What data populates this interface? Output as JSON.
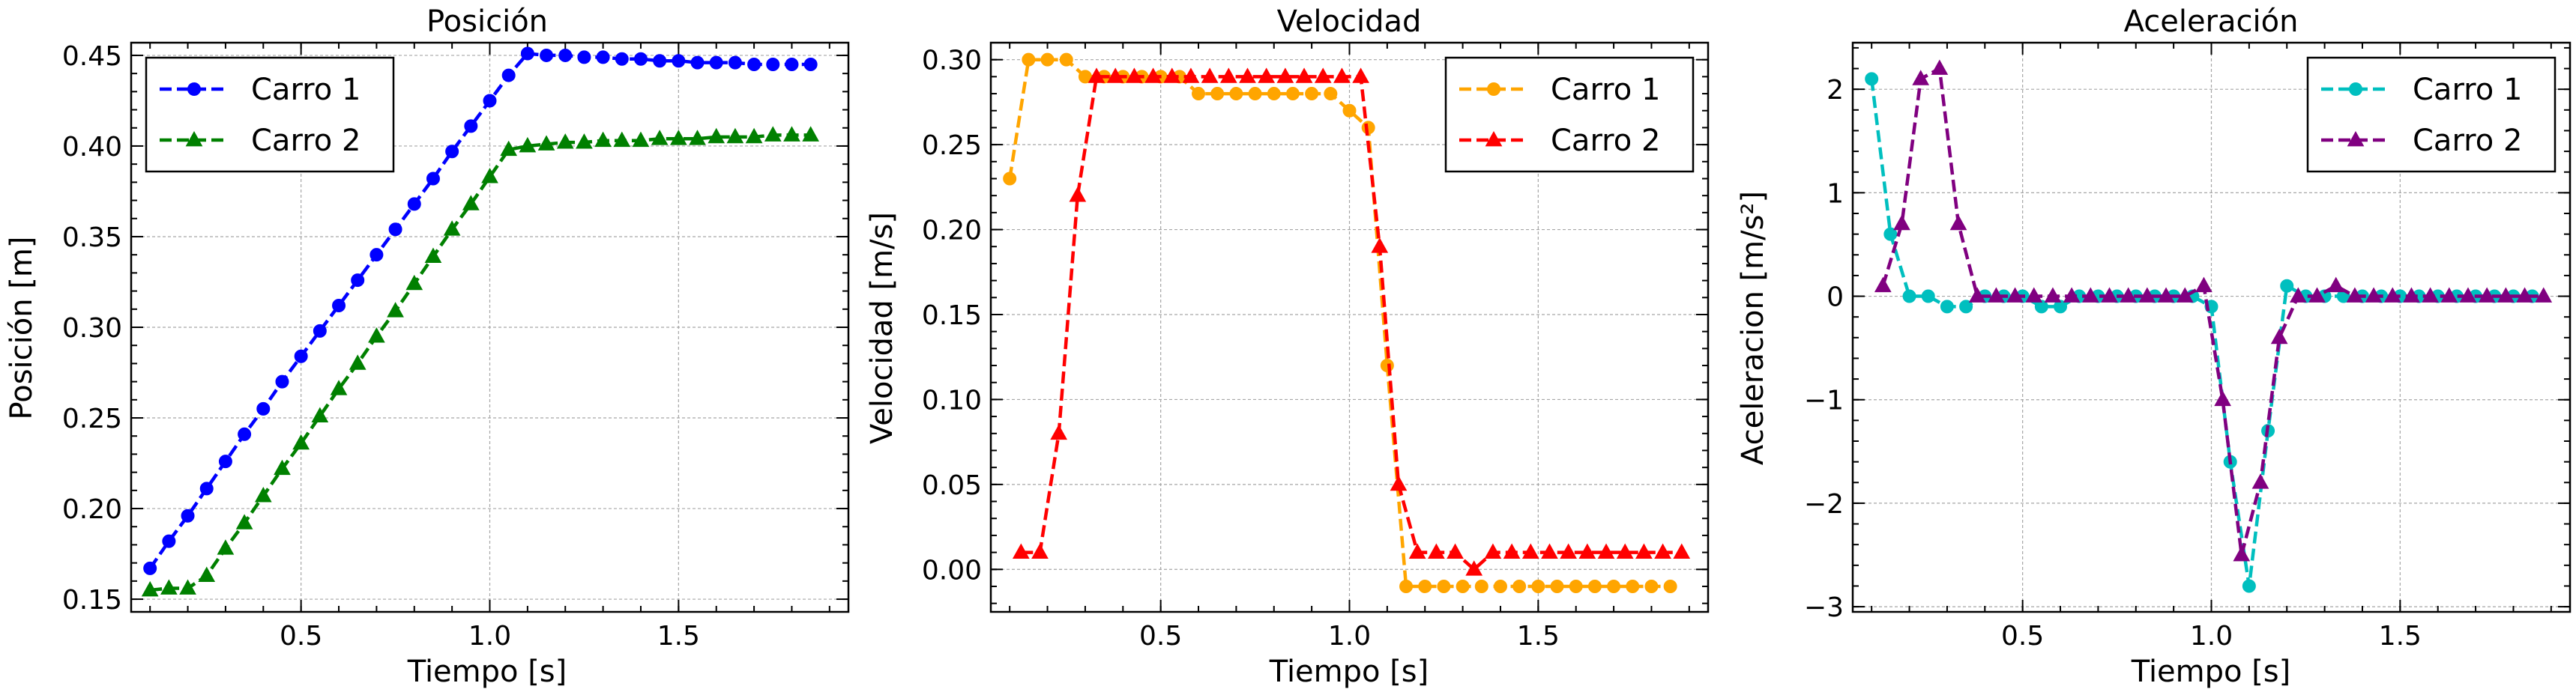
{
  "chart_data": [
    {
      "type": "line",
      "title": "Posición",
      "xlabel": "Tiempo [s]",
      "ylabel": "Posición [m]",
      "xlim": [
        0.05,
        1.95
      ],
      "ylim": [
        0.143,
        0.457
      ],
      "xticks": [
        0.5,
        1.0,
        1.5
      ],
      "xtick_labels": [
        "0.5",
        "1.0",
        "1.5"
      ],
      "yticks": [
        0.15,
        0.2,
        0.25,
        0.3,
        0.35,
        0.4,
        0.45
      ],
      "ytick_labels": [
        "0.15",
        "0.20",
        "0.25",
        "0.30",
        "0.35",
        "0.40",
        "0.45"
      ],
      "grid": true,
      "legend_position": "top-left",
      "series": [
        {
          "name": "Carro 1",
          "color": "#0000ff",
          "marker": "circle",
          "x": [
            0.1,
            0.15,
            0.2,
            0.25,
            0.3,
            0.35,
            0.4,
            0.45,
            0.5,
            0.55,
            0.6,
            0.65,
            0.7,
            0.75,
            0.8,
            0.85,
            0.9,
            0.95,
            1.0,
            1.05,
            1.1,
            1.15,
            1.2,
            1.25,
            1.3,
            1.35,
            1.4,
            1.45,
            1.5,
            1.55,
            1.6,
            1.65,
            1.7,
            1.75,
            1.8,
            1.85
          ],
          "y": [
            0.167,
            0.182,
            0.196,
            0.211,
            0.226,
            0.241,
            0.255,
            0.27,
            0.284,
            0.298,
            0.312,
            0.326,
            0.34,
            0.354,
            0.368,
            0.382,
            0.397,
            0.411,
            0.425,
            0.439,
            0.451,
            0.45,
            0.45,
            0.449,
            0.449,
            0.448,
            0.448,
            0.447,
            0.447,
            0.446,
            0.446,
            0.446,
            0.445,
            0.445,
            0.445,
            0.445
          ]
        },
        {
          "name": "Carro 2",
          "color": "#008000",
          "marker": "triangle",
          "x": [
            0.1,
            0.15,
            0.2,
            0.25,
            0.3,
            0.35,
            0.4,
            0.45,
            0.5,
            0.55,
            0.6,
            0.65,
            0.7,
            0.75,
            0.8,
            0.85,
            0.9,
            0.95,
            1.0,
            1.05,
            1.1,
            1.15,
            1.2,
            1.25,
            1.3,
            1.35,
            1.4,
            1.45,
            1.5,
            1.55,
            1.6,
            1.65,
            1.7,
            1.75,
            1.8,
            1.85
          ],
          "y": [
            0.155,
            0.156,
            0.156,
            0.163,
            0.178,
            0.192,
            0.207,
            0.222,
            0.236,
            0.251,
            0.266,
            0.28,
            0.295,
            0.309,
            0.324,
            0.339,
            0.354,
            0.368,
            0.383,
            0.398,
            0.4,
            0.401,
            0.402,
            0.402,
            0.403,
            0.403,
            0.403,
            0.404,
            0.404,
            0.404,
            0.405,
            0.405,
            0.405,
            0.406,
            0.406,
            0.406
          ]
        }
      ]
    },
    {
      "type": "line",
      "title": "Velocidad",
      "xlabel": "Tiempo [s]",
      "ylabel": "Velocidad [m/s]",
      "xlim": [
        0.05,
        1.95
      ],
      "ylim": [
        -0.025,
        0.31
      ],
      "xticks": [
        0.5,
        1.0,
        1.5
      ],
      "xtick_labels": [
        "0.5",
        "1.0",
        "1.5"
      ],
      "yticks": [
        0.0,
        0.05,
        0.1,
        0.15,
        0.2,
        0.25,
        0.3
      ],
      "ytick_labels": [
        "0.00",
        "0.05",
        "0.10",
        "0.15",
        "0.20",
        "0.25",
        "0.30"
      ],
      "grid": true,
      "legend_position": "top-right",
      "series": [
        {
          "name": "Carro 1",
          "color": "#ffa500",
          "marker": "circle",
          "x": [
            0.1,
            0.15,
            0.2,
            0.25,
            0.3,
            0.35,
            0.4,
            0.45,
            0.5,
            0.55,
            0.6,
            0.65,
            0.7,
            0.75,
            0.8,
            0.85,
            0.9,
            0.95,
            1.0,
            1.05,
            1.1,
            1.15,
            1.2,
            1.25,
            1.3,
            1.35,
            1.4,
            1.45,
            1.5,
            1.55,
            1.6,
            1.65,
            1.7,
            1.75,
            1.8,
            1.85
          ],
          "y": [
            0.23,
            0.3,
            0.3,
            0.3,
            0.29,
            0.29,
            0.29,
            0.29,
            0.29,
            0.29,
            0.28,
            0.28,
            0.28,
            0.28,
            0.28,
            0.28,
            0.28,
            0.28,
            0.27,
            0.26,
            0.12,
            -0.01,
            -0.01,
            -0.01,
            -0.01,
            -0.01,
            -0.01,
            -0.01,
            -0.01,
            -0.01,
            -0.01,
            -0.01,
            -0.01,
            -0.01,
            -0.01,
            -0.01
          ]
        },
        {
          "name": "Carro 2",
          "color": "#ff0000",
          "marker": "triangle",
          "x": [
            0.13,
            0.18,
            0.23,
            0.28,
            0.33,
            0.38,
            0.43,
            0.48,
            0.53,
            0.58,
            0.63,
            0.68,
            0.73,
            0.78,
            0.83,
            0.88,
            0.93,
            0.98,
            1.03,
            1.08,
            1.13,
            1.18,
            1.23,
            1.28,
            1.33,
            1.38,
            1.43,
            1.48,
            1.53,
            1.58,
            1.63,
            1.68,
            1.73,
            1.78,
            1.83,
            1.88
          ],
          "y": [
            0.01,
            0.01,
            0.08,
            0.22,
            0.29,
            0.29,
            0.29,
            0.29,
            0.29,
            0.29,
            0.29,
            0.29,
            0.29,
            0.29,
            0.29,
            0.29,
            0.29,
            0.29,
            0.29,
            0.19,
            0.05,
            0.01,
            0.01,
            0.01,
            0.0,
            0.01,
            0.01,
            0.01,
            0.01,
            0.01,
            0.01,
            0.01,
            0.01,
            0.01,
            0.01,
            0.01
          ]
        }
      ]
    },
    {
      "type": "line",
      "title": "Aceleración",
      "xlabel": "Tiempo [s]",
      "ylabel": "Aceleracion [m/s²]",
      "xlim": [
        0.05,
        1.95
      ],
      "ylim": [
        -3.05,
        2.45
      ],
      "xticks": [
        0.5,
        1.0,
        1.5
      ],
      "xtick_labels": [
        "0.5",
        "1.0",
        "1.5"
      ],
      "yticks": [
        -3,
        -2,
        -1,
        0,
        1,
        2
      ],
      "ytick_labels": [
        "−3",
        "−2",
        "−1",
        "0",
        "1",
        "2"
      ],
      "grid": true,
      "legend_position": "top-right",
      "series": [
        {
          "name": "Carro 1",
          "color": "#00bfbf",
          "marker": "circle",
          "x": [
            0.1,
            0.15,
            0.2,
            0.25,
            0.3,
            0.35,
            0.4,
            0.45,
            0.5,
            0.55,
            0.6,
            0.65,
            0.7,
            0.75,
            0.8,
            0.85,
            0.9,
            0.95,
            1.0,
            1.05,
            1.1,
            1.15,
            1.2,
            1.25,
            1.3,
            1.35,
            1.4,
            1.45,
            1.5,
            1.55,
            1.6,
            1.65,
            1.7,
            1.75,
            1.8,
            1.85
          ],
          "y": [
            2.1,
            0.6,
            0.0,
            0.0,
            -0.1,
            -0.1,
            0.0,
            0.0,
            0.0,
            -0.1,
            -0.1,
            0.0,
            0.0,
            0.0,
            0.0,
            0.0,
            0.0,
            0.0,
            -0.1,
            -1.6,
            -2.8,
            -1.3,
            0.1,
            0.0,
            0.0,
            0.0,
            0.0,
            0.0,
            0.0,
            0.0,
            0.0,
            0.0,
            0.0,
            0.0,
            0.0,
            0.0
          ]
        },
        {
          "name": "Carro 2",
          "color": "#800080",
          "marker": "triangle",
          "x": [
            0.13,
            0.18,
            0.23,
            0.28,
            0.33,
            0.38,
            0.43,
            0.48,
            0.53,
            0.58,
            0.63,
            0.68,
            0.73,
            0.78,
            0.83,
            0.88,
            0.93,
            0.98,
            1.03,
            1.08,
            1.13,
            1.18,
            1.23,
            1.28,
            1.33,
            1.38,
            1.43,
            1.48,
            1.53,
            1.58,
            1.63,
            1.68,
            1.73,
            1.78,
            1.83,
            1.88
          ],
          "y": [
            0.1,
            0.7,
            2.1,
            2.2,
            0.7,
            0.0,
            0.0,
            0.0,
            0.0,
            0.0,
            0.0,
            0.0,
            0.0,
            0.0,
            0.0,
            0.0,
            0.0,
            0.1,
            -1.0,
            -2.5,
            -1.8,
            -0.4,
            0.0,
            0.0,
            0.1,
            0.0,
            0.0,
            0.0,
            0.0,
            0.0,
            0.0,
            0.0,
            0.0,
            0.0,
            0.0,
            0.0
          ]
        }
      ]
    }
  ]
}
